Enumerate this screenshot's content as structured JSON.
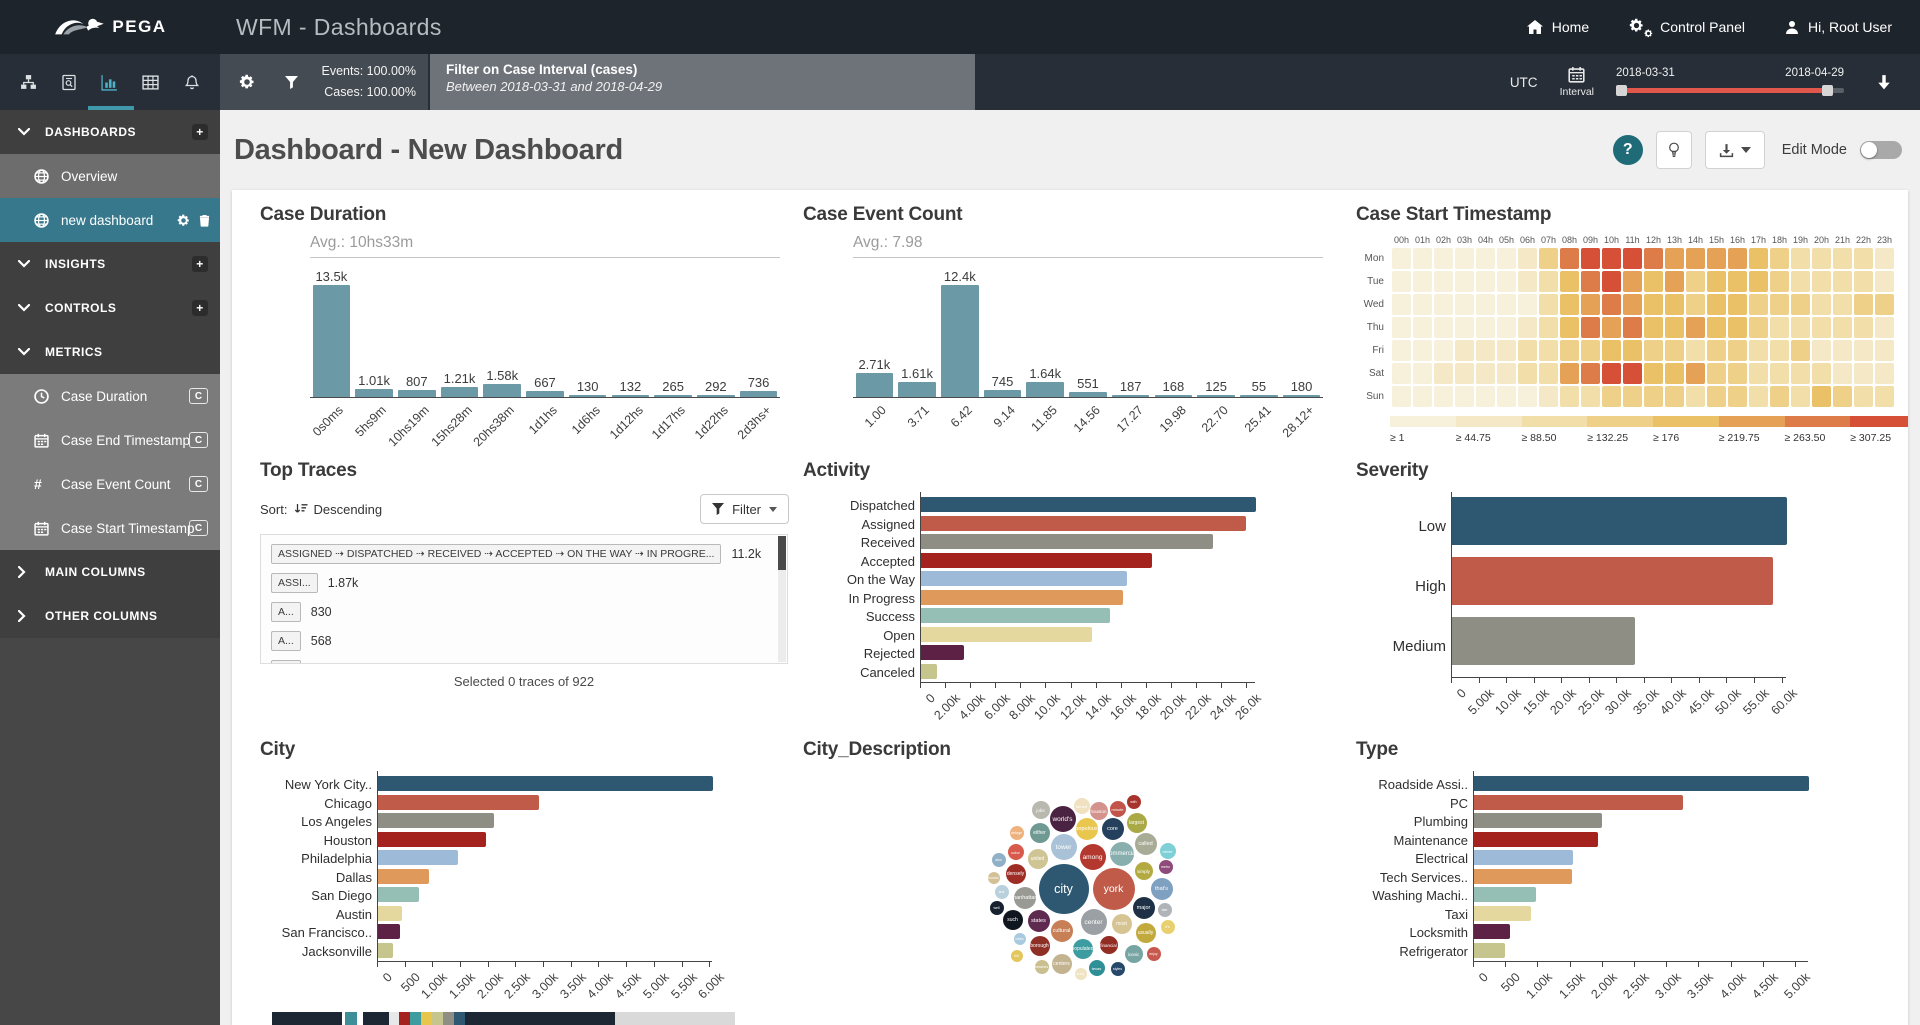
{
  "header": {
    "brand": "PEGA",
    "app_title": "WFM - Dashboards",
    "nav": [
      {
        "label": "Home"
      },
      {
        "label": "Control Panel"
      },
      {
        "label": "Hi, Root User"
      }
    ]
  },
  "toolbar": {
    "events_label": "Events: 100.00%",
    "cases_label": "Cases: 100.00%",
    "filter_title": "Filter on Case Interval (cases)",
    "filter_subtitle": "Between 2018-03-31 and 2018-04-29",
    "timezone": "UTC",
    "interval_label": "Interval",
    "date_start": "2018-03-31",
    "date_end": "2018-04-29"
  },
  "sidebar": {
    "plus_glyph": "+",
    "metric_badge": "C",
    "items": [
      {
        "type": "header",
        "label": "DASHBOARDS",
        "icon": "chevron-down",
        "action": "plus"
      },
      {
        "type": "link",
        "label": "Overview",
        "icon": "globe",
        "state": "hover"
      },
      {
        "type": "link",
        "label": "new dashboard",
        "icon": "globe",
        "state": "active",
        "trailing": [
          "gear",
          "trash"
        ]
      },
      {
        "type": "header",
        "label": "INSIGHTS",
        "icon": "chevron-down",
        "action": "plus"
      },
      {
        "type": "header",
        "label": "CONTROLS",
        "icon": "chevron-down",
        "action": "plus"
      },
      {
        "type": "header",
        "label": "METRICS",
        "icon": "chevron-down"
      },
      {
        "type": "metric",
        "label": "Case Duration",
        "icon": "clock",
        "badge": "C"
      },
      {
        "type": "metric",
        "label": "Case End Timestamp",
        "icon": "calendar",
        "badge": "C"
      },
      {
        "type": "metric",
        "label": "Case Event Count",
        "icon": "hash",
        "badge": "C"
      },
      {
        "type": "metric",
        "label": "Case Start Timestamp",
        "icon": "calendar",
        "badge": "C"
      },
      {
        "type": "header",
        "label": "MAIN COLUMNS",
        "icon": "chevron-right"
      },
      {
        "type": "header",
        "label": "OTHER COLUMNS",
        "icon": "chevron-right"
      }
    ]
  },
  "page": {
    "title": "Dashboard - New Dashboard",
    "help_glyph": "?",
    "edit_mode_label": "Edit Mode"
  },
  "panels": {
    "top_traces": {
      "title": "Top Traces",
      "sort_label": "Sort:",
      "sort_value": "Descending",
      "filter_button": "Filter",
      "rows": [
        {
          "trace": "ASSIGNED ⇢ DISPATCHED ⇢ RECEIVED ⇢ ACCEPTED ⇢ ON THE WAY ⇢ IN PROGRE...",
          "count": "11.2k"
        },
        {
          "trace": "ASSI...",
          "count": "1.87k"
        },
        {
          "trace": "A...",
          "count": "830"
        },
        {
          "trace": "A...",
          "count": "568"
        },
        {
          "trace": "A...",
          "count": ""
        }
      ],
      "footer": "Selected 0 traces of 922"
    }
  },
  "colors": {
    "categorical": [
      "#2e5871",
      "#c05b49",
      "#8f8e85",
      "#a5231f",
      "#9dbbd9",
      "#df9a5b",
      "#95bfb4",
      "#e5d89f",
      "#5c2144",
      "#c5c58d"
    ],
    "histogram_bar": "#6b9aa6",
    "heatmap_palette": [
      "#f7f0da",
      "#f4e8c6",
      "#f1dea8",
      "#eed088",
      "#ebc167",
      "#e5a257",
      "#dd7c48",
      "#d65038"
    ]
  },
  "chart_data": [
    {
      "id": "case_duration",
      "type": "bar",
      "title": "Case Duration",
      "avg_label": "Avg.: 10hs33m",
      "categories": [
        "0s0ms",
        "5hs9m",
        "10hs19m",
        "15hs28m",
        "20hs38m",
        "1d1hs",
        "1d6hs",
        "1d12hs",
        "1d17hs",
        "1d22hs",
        "2d3hs+"
      ],
      "values": [
        13500,
        1010,
        807,
        1210,
        1580,
        667,
        130,
        132,
        265,
        292,
        736
      ],
      "value_labels": [
        "13.5k",
        "1.01k",
        "807",
        "1.21k",
        "1.58k",
        "667",
        "130",
        "132",
        "265",
        "292",
        "736"
      ],
      "ylim": [
        0,
        13500
      ]
    },
    {
      "id": "case_event_count",
      "type": "bar",
      "title": "Case Event Count",
      "avg_label": "Avg.: 7.98",
      "categories": [
        "1.00",
        "3.71",
        "6.42",
        "9.14",
        "11.85",
        "14.56",
        "17.27",
        "19.98",
        "22.70",
        "25.41",
        "28.12+"
      ],
      "values": [
        2710,
        1610,
        12400,
        745,
        1640,
        551,
        187,
        168,
        125,
        55,
        180
      ],
      "value_labels": [
        "2.71k",
        "1.61k",
        "12.4k",
        "745",
        "1.64k",
        "551",
        "187",
        "168",
        "125",
        "55",
        "180"
      ],
      "ylim": [
        0,
        12400
      ]
    },
    {
      "id": "case_start_timestamp",
      "type": "heatmap",
      "title": "Case Start Timestamp",
      "columns": [
        "00h",
        "01h",
        "02h",
        "03h",
        "04h",
        "05h",
        "06h",
        "07h",
        "08h",
        "09h",
        "10h",
        "11h",
        "12h",
        "13h",
        "14h",
        "15h",
        "16h",
        "17h",
        "18h",
        "19h",
        "20h",
        "21h",
        "22h",
        "23h"
      ],
      "rows": [
        "Mon",
        "Tue",
        "Wed",
        "Thu",
        "Fri",
        "Sat",
        "Sun"
      ],
      "levels": [
        [
          0,
          0,
          0,
          0,
          0,
          0,
          1,
          3,
          6,
          7,
          7,
          7,
          6,
          5,
          5,
          5,
          5,
          4,
          3,
          2,
          2,
          2,
          2,
          1
        ],
        [
          0,
          0,
          0,
          0,
          0,
          0,
          1,
          2,
          4,
          6,
          7,
          5,
          4,
          5,
          3,
          4,
          4,
          4,
          3,
          2,
          2,
          2,
          2,
          1
        ],
        [
          0,
          0,
          0,
          0,
          0,
          0,
          0,
          2,
          4,
          5,
          6,
          5,
          4,
          4,
          3,
          4,
          4,
          3,
          3,
          3,
          2,
          2,
          3,
          3
        ],
        [
          0,
          0,
          0,
          0,
          0,
          0,
          1,
          2,
          4,
          6,
          5,
          6,
          4,
          4,
          5,
          4,
          4,
          3,
          2,
          2,
          2,
          2,
          2,
          1
        ],
        [
          0,
          0,
          0,
          1,
          1,
          1,
          2,
          2,
          3,
          3,
          4,
          4,
          3,
          3,
          2,
          3,
          3,
          2,
          2,
          3,
          1,
          1,
          1,
          1
        ],
        [
          0,
          0,
          1,
          1,
          1,
          1,
          2,
          2,
          5,
          6,
          7,
          7,
          4,
          4,
          5,
          3,
          3,
          2,
          2,
          2,
          2,
          1,
          1,
          1
        ],
        [
          0,
          0,
          0,
          0,
          0,
          0,
          0,
          1,
          2,
          2,
          3,
          3,
          3,
          3,
          2,
          3,
          3,
          2,
          3,
          2,
          4,
          3,
          2,
          2
        ]
      ],
      "legend_labels": [
        "≥ 1",
        "≥ 44.75",
        "≥ 88.50",
        "≥ 132.25",
        "≥ 176",
        "≥ 219.75",
        "≥ 263.50",
        "≥ 307.25"
      ]
    },
    {
      "id": "activity",
      "type": "hbar",
      "title": "Activity",
      "categories": [
        "Dispatched",
        "Assigned",
        "Received",
        "Accepted",
        "On the Way",
        "In Progress",
        "Success",
        "Open",
        "Rejected",
        "Canceled"
      ],
      "values": [
        26700,
        25900,
        23300,
        18400,
        16400,
        16100,
        15100,
        13600,
        3400,
        1300
      ],
      "xtick_values": [
        0,
        2000,
        4000,
        6000,
        8000,
        10000,
        12000,
        14000,
        16000,
        18000,
        20000,
        22000,
        24000,
        26000
      ],
      "xtick_labels": [
        "0",
        "2.00k",
        "4.00k",
        "6.00k",
        "8.00k",
        "10.0k",
        "12.0k",
        "14.0k",
        "16.0k",
        "18.0k",
        "20.0k",
        "22.0k",
        "24.0k",
        "26.0k"
      ]
    },
    {
      "id": "severity",
      "type": "hbar",
      "title": "Severity",
      "categories": [
        "Low",
        "High",
        "Medium"
      ],
      "values": [
        60800,
        58300,
        33200
      ],
      "xtick_values": [
        0,
        5000,
        10000,
        15000,
        20000,
        25000,
        30000,
        35000,
        40000,
        45000,
        50000,
        55000,
        60000
      ],
      "xtick_labels": [
        "0",
        "5.00k",
        "10.0k",
        "15.0k",
        "20.0k",
        "25.0k",
        "30.0k",
        "35.0k",
        "40.0k",
        "45.0k",
        "50.0k",
        "55.0k",
        "60.0k"
      ]
    },
    {
      "id": "city",
      "type": "hbar",
      "title": "City",
      "categories": [
        "New York City..",
        "Chicago",
        "Los Angeles",
        "Houston",
        "Philadelphia",
        "Dallas",
        "San Diego",
        "Austin",
        "San Francisco..",
        "Jacksonville"
      ],
      "values": [
        6050,
        2900,
        2100,
        1950,
        1450,
        920,
        740,
        440,
        390,
        270
      ],
      "xtick_values": [
        0,
        500,
        1000,
        1500,
        2000,
        2500,
        3000,
        3500,
        4000,
        4500,
        5000,
        5500,
        6000
      ],
      "xtick_labels": [
        "0",
        "500",
        "1.00k",
        "1.50k",
        "2.00k",
        "2.50k",
        "3.00k",
        "3.50k",
        "4.00k",
        "4.50k",
        "5.00k",
        "5.50k",
        "6.00k"
      ]
    },
    {
      "id": "city_description",
      "type": "bubble",
      "title": "City_Description",
      "bubbles": [
        {
          "w": "jobs",
          "x": 75,
          "y": 29,
          "r": 9,
          "c": "#b9b9b0"
        },
        {
          "w": "world's",
          "x": 97,
          "y": 38,
          "r": 13,
          "c": "#4b2342"
        },
        {
          "w": "famed",
          "x": 116,
          "y": 25,
          "r": 8,
          "c": "#f0e2c0"
        },
        {
          "w": "houston",
          "x": 133,
          "y": 30,
          "r": 9,
          "c": "#d3928b"
        },
        {
          "w": "minute",
          "x": 152,
          "y": 28,
          "r": 8,
          "c": "#c2544a"
        },
        {
          "w": "with",
          "x": 168,
          "y": 21,
          "r": 7,
          "c": "#a8332d"
        },
        {
          "w": "largest",
          "x": 171,
          "y": 42,
          "r": 10,
          "c": "#a9a946"
        },
        {
          "w": "either",
          "x": 74,
          "y": 52,
          "r": 10,
          "c": "#6f9a93"
        },
        {
          "w": "populous",
          "x": 121,
          "y": 48,
          "r": 11,
          "c": "#e9c64e"
        },
        {
          "w": "core",
          "x": 147,
          "y": 48,
          "r": 11,
          "c": "#24405c"
        },
        {
          "w": "vintage",
          "x": 51,
          "y": 52,
          "r": 7,
          "c": "#eeb27e"
        },
        {
          "w": "tower",
          "x": 98,
          "y": 66,
          "r": 13,
          "c": "#a9c2d8"
        },
        {
          "w": "called",
          "x": 180,
          "y": 63,
          "r": 11,
          "c": "#a8ab95"
        },
        {
          "w": "never",
          "x": 202,
          "y": 70,
          "r": 8,
          "c": "#7fd0d6"
        },
        {
          "w": "color",
          "x": 50,
          "y": 71,
          "r": 8,
          "c": "#d85a4c"
        },
        {
          "w": "also",
          "x": 33,
          "y": 79,
          "r": 7,
          "c": "#8fb0c7"
        },
        {
          "w": "united",
          "x": 72,
          "y": 78,
          "r": 10,
          "c": "#cfc494"
        },
        {
          "w": "among",
          "x": 127,
          "y": 76,
          "r": 13,
          "c": "#b5382f"
        },
        {
          "w": "commercial",
          "x": 156,
          "y": 73,
          "r": 12,
          "c": "#88aeae"
        },
        {
          "w": "metro",
          "x": 200,
          "y": 86,
          "r": 7,
          "c": "#8e4a78"
        },
        {
          "w": "densely",
          "x": 50,
          "y": 93,
          "r": 10,
          "c": "#9e2d26"
        },
        {
          "w": "simply",
          "x": 178,
          "y": 90,
          "r": 9,
          "c": "#b3ab41"
        },
        {
          "w": "boston",
          "x": 28,
          "y": 97,
          "r": 6,
          "c": "#d4c097"
        },
        {
          "w": "city",
          "x": 98,
          "y": 108,
          "r": 25,
          "c": "#2e5871"
        },
        {
          "w": "york",
          "x": 148,
          "y": 108,
          "r": 21,
          "c": "#c05b49"
        },
        {
          "w": "that's",
          "x": 196,
          "y": 108,
          "r": 11,
          "c": "#7ea0c1"
        },
        {
          "w": "arts",
          "x": 36,
          "y": 111,
          "r": 7,
          "c": "#b9d0dd"
        },
        {
          "w": "manhattan",
          "x": 59,
          "y": 117,
          "r": 11,
          "c": "#9a9a94"
        },
        {
          "w": "well",
          "x": 31,
          "y": 127,
          "r": 7,
          "c": "#16202e"
        },
        {
          "w": "major",
          "x": 178,
          "y": 127,
          "r": 11,
          "c": "#1d3045"
        },
        {
          "w": "late",
          "x": 199,
          "y": 129,
          "r": 7,
          "c": "#b0b4b8"
        },
        {
          "w": "such",
          "x": 47,
          "y": 139,
          "r": 10,
          "c": "#10161f"
        },
        {
          "w": "states",
          "x": 73,
          "y": 140,
          "r": 11,
          "c": "#5f2a50"
        },
        {
          "w": "center",
          "x": 128,
          "y": 141,
          "r": 13,
          "c": "#9aa0a3"
        },
        {
          "w": "most",
          "x": 156,
          "y": 143,
          "r": 10,
          "c": "#d6c492"
        },
        {
          "w": "it's",
          "x": 202,
          "y": 146,
          "r": 7,
          "c": "#e9d06f"
        },
        {
          "w": "usually",
          "x": 180,
          "y": 152,
          "r": 10,
          "c": "#c2a93c"
        },
        {
          "w": "cultural",
          "x": 96,
          "y": 150,
          "r": 11,
          "c": "#c77f56"
        },
        {
          "w": "cities",
          "x": 54,
          "y": 158,
          "r": 6,
          "c": "#a9cade"
        },
        {
          "w": "borough",
          "x": 74,
          "y": 165,
          "r": 10,
          "c": "#8f3026"
        },
        {
          "w": "populated",
          "x": 117,
          "y": 168,
          "r": 10,
          "c": "#3d9ca0"
        },
        {
          "w": "financial",
          "x": 143,
          "y": 164,
          "r": 9,
          "c": "#932d23"
        },
        {
          "w": "iconic",
          "x": 168,
          "y": 173,
          "r": 9,
          "c": "#77a5a3"
        },
        {
          "w": "enjoy",
          "x": 188,
          "y": 173,
          "r": 7,
          "c": "#c7584e"
        },
        {
          "w": "full",
          "x": 51,
          "y": 175,
          "r": 6,
          "c": "#e3c75d"
        },
        {
          "w": "beaches",
          "x": 76,
          "y": 186,
          "r": 7,
          "c": "#cabf8e"
        },
        {
          "w": "centers",
          "x": 96,
          "y": 183,
          "r": 10,
          "c": "#c4b391"
        },
        {
          "w": "texas",
          "x": 131,
          "y": 187,
          "r": 8,
          "c": "#2e8f96"
        },
        {
          "w": "styles",
          "x": 152,
          "y": 188,
          "r": 7,
          "c": "#27486b"
        },
        {
          "w": "lively",
          "x": 115,
          "y": 193,
          "r": 6,
          "c": "#efe3c2"
        }
      ]
    },
    {
      "id": "type",
      "type": "hbar",
      "title": "Type",
      "categories": [
        "Roadside Assi..",
        "PC",
        "Plumbing",
        "Maintenance",
        "Electrical",
        "Tech Services..",
        "Washing Machi..",
        "Taxi",
        "Locksmith",
        "Refrigerator"
      ],
      "values": [
        5200,
        3250,
        1980,
        1920,
        1530,
        1520,
        960,
        890,
        560,
        480
      ],
      "xtick_values": [
        0,
        500,
        1000,
        1500,
        2000,
        2500,
        3000,
        3500,
        4000,
        4500,
        5000
      ],
      "xtick_labels": [
        "0",
        "500",
        "1.00k",
        "1.50k",
        "2.00k",
        "2.50k",
        "3.00k",
        "3.50k",
        "4.00k",
        "4.50k",
        "5.00k"
      ]
    }
  ],
  "bottom_strip": {
    "segments": [
      {
        "c": "#1d2633",
        "w": 70
      },
      {
        "c": "#ffffff",
        "w": 3
      },
      {
        "c": "#3d8e99",
        "w": 12
      },
      {
        "c": "#ffffff",
        "w": 6
      },
      {
        "c": "#1d2633",
        "w": 26
      },
      {
        "c": "#e8e8e8",
        "w": 10
      },
      {
        "c": "#a5231f",
        "w": 11
      },
      {
        "c": "#3d9ca0",
        "w": 11
      },
      {
        "c": "#e8c54b",
        "w": 11
      },
      {
        "c": "#c5c58d",
        "w": 11
      },
      {
        "c": "#8f8e85",
        "w": 11
      },
      {
        "c": "#2e5871",
        "w": 11
      },
      {
        "c": "#1d2633",
        "w": 150
      },
      {
        "c": "#d9d9d9",
        "w": 120
      }
    ]
  }
}
